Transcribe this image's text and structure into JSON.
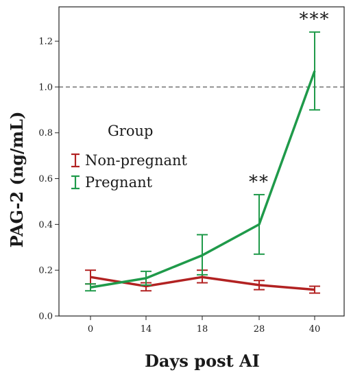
{
  "chart_data": {
    "type": "line",
    "title": "",
    "xlabel": "Days post AI",
    "ylabel": "PAG-2 (ng/mL)",
    "categories": [
      "0",
      "14",
      "18",
      "28",
      "40"
    ],
    "ylim": [
      0,
      1.35
    ],
    "yticks": [
      "0.0",
      "0.2",
      "0.4",
      "0.6",
      "0.8",
      "1.0",
      "1.2"
    ],
    "reference_line": {
      "y": 1.0,
      "style": "dashed"
    },
    "grid": false,
    "legend": {
      "title": "Group",
      "placement": "left-middle"
    },
    "series": [
      {
        "name": "Non-pregnant",
        "color": "#b22222",
        "values": [
          0.17,
          0.13,
          0.17,
          0.135,
          0.115
        ],
        "err_low": [
          0.14,
          0.11,
          0.145,
          0.115,
          0.1
        ],
        "err_high": [
          0.2,
          0.145,
          0.2,
          0.155,
          0.13
        ]
      },
      {
        "name": "Pregnant",
        "color": "#1f9a4a",
        "values": [
          0.125,
          0.165,
          0.265,
          0.4,
          1.07
        ],
        "err_low": [
          0.11,
          0.135,
          0.18,
          0.27,
          0.9
        ],
        "err_high": [
          0.14,
          0.195,
          0.355,
          0.53,
          1.24
        ]
      }
    ],
    "annotations": [
      {
        "category": "28",
        "text": "**"
      },
      {
        "category": "40",
        "text": "***"
      }
    ]
  }
}
